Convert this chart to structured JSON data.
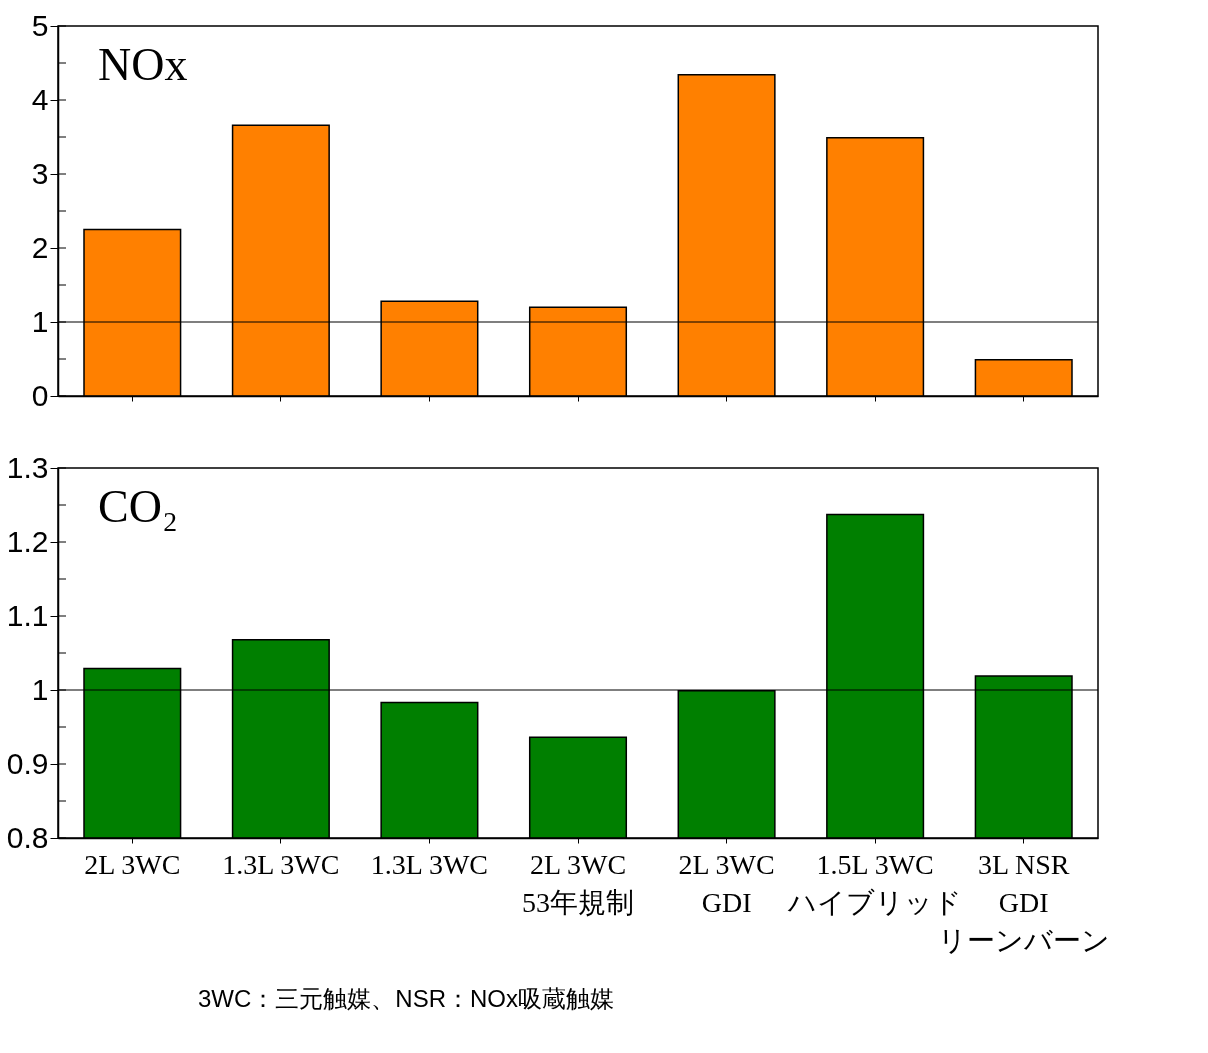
{
  "chart_data": [
    {
      "type": "bar",
      "title": "NOx",
      "categories": [
        null,
        null,
        null,
        null,
        null,
        null,
        null
      ],
      "series": [
        {
          "color": "#ff8000",
          "values": [
            2.25,
            3.66,
            1.28,
            1.2,
            4.34,
            3.49,
            0.49
          ]
        }
      ],
      "ylim": [
        0,
        5
      ],
      "yticks": [
        0,
        {
          "value": 0.5,
          "label": null
        },
        1,
        {
          "value": 1.5,
          "label": null
        },
        2,
        {
          "value": 2.5,
          "label": null
        },
        3,
        {
          "value": 3.5,
          "label": null
        },
        4,
        {
          "value": 4.5,
          "label": null
        },
        5
      ],
      "ref_lines": [
        {
          "axis": "y",
          "value": 1,
          "label": null,
          "color": "#000000"
        }
      ],
      "tick_labels": "y",
      "grid": false,
      "legend": false
    },
    {
      "type": "bar",
      "title": "CO₂",
      "categories": [
        "2L 3WC",
        "1.3L 3WC",
        "1.3L 3WC",
        "2L 3WC\n53年規制",
        "2L 3WC\nGDI",
        "1.5L 3WC\nハイブリッド",
        "3L NSR\nGDI\nリーンバーン"
      ],
      "series": [
        {
          "color": "#007f00",
          "values": [
            1.029,
            1.068,
            0.983,
            0.936,
            0.999,
            1.237,
            1.019
          ]
        }
      ],
      "ylim": [
        0.8,
        1.3
      ],
      "yticks": [
        0.8,
        {
          "value": 0.85,
          "label": null
        },
        0.9,
        {
          "value": 0.95,
          "label": null
        },
        1,
        {
          "value": 1.05,
          "label": null
        },
        1.1,
        {
          "value": 1.15,
          "label": null
        },
        1.2,
        {
          "value": 1.25,
          "label": null
        },
        1.3
      ],
      "ref_lines": [
        {
          "axis": "y",
          "value": 1,
          "label": null,
          "color": "#000000"
        }
      ],
      "annotations": [
        "3WC：三元触媒、NSR：NOx吸蔵触媒"
      ],
      "grid": false,
      "legend": false
    }
  ]
}
